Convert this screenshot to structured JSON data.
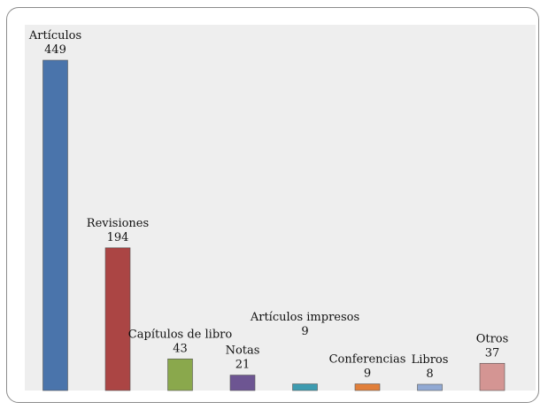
{
  "chart_data": {
    "type": "bar",
    "categories": [
      "Artículos",
      "Revisiones",
      "Capítulos de libro",
      "Notas",
      "Artículos impresos",
      "Conferencias",
      "Libros",
      "Otros"
    ],
    "values": [
      449,
      194,
      43,
      21,
      9,
      9,
      8,
      37
    ],
    "colors": [
      "#4a74ab",
      "#ab4544",
      "#8aa84c",
      "#6d5592",
      "#3d9bb0",
      "#e17f3a",
      "#91a9d3",
      "#d49593"
    ],
    "ylim": [
      0,
      470
    ],
    "grid": false,
    "legend": "none",
    "plot_background": "#eeeeee"
  }
}
